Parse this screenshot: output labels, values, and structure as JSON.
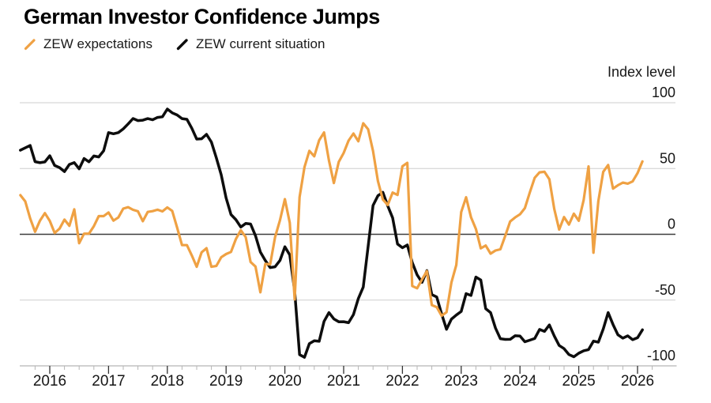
{
  "title": "German Investor Confidence Jumps",
  "legend": {
    "items": [
      {
        "label": "ZEW expectations",
        "color": "#EFA143"
      },
      {
        "label": "ZEW current situation",
        "color": "#0d0d0d"
      }
    ]
  },
  "axis": {
    "unit_label": "Index level",
    "y_ticks": [
      100,
      50,
      0,
      -50,
      -100
    ],
    "x_ticks": [
      2016,
      2017,
      2018,
      2019,
      2020,
      2021,
      2022,
      2023,
      2024,
      2025,
      2026
    ]
  },
  "chart_data": {
    "type": "line",
    "title": "German Investor Confidence Jumps",
    "xlabel": "",
    "ylabel": "Index level",
    "ylim": [
      -100,
      100
    ],
    "x_start": "2015-07",
    "x_end": "2026-02",
    "frequency": "monthly",
    "grid": "horizontal",
    "legend_position": "top-left",
    "series": [
      {
        "name": "ZEW expectations",
        "color": "#EFA143",
        "values": [
          29.7,
          25.0,
          12.1,
          1.9,
          10.4,
          16.1,
          10.2,
          1.0,
          4.3,
          11.2,
          6.4,
          19.0,
          -6.8,
          0.5,
          0.5,
          6.2,
          13.8,
          13.8,
          16.6,
          10.4,
          12.8,
          19.5,
          20.6,
          18.6,
          17.5,
          10.0,
          17.0,
          17.6,
          18.7,
          17.4,
          20.4,
          17.8,
          5.1,
          -8.2,
          -8.2,
          -16.1,
          -24.7,
          -13.7,
          -10.6,
          -24.7,
          -24.1,
          -17.5,
          -15.0,
          -13.4,
          -3.6,
          3.1,
          -2.1,
          -21.1,
          -24.5,
          -44.1,
          -22.5,
          -22.8,
          -2.1,
          10.7,
          26.7,
          8.7,
          -49.5,
          28.2,
          51.0,
          63.4,
          59.3,
          71.5,
          77.4,
          56.1,
          39.0,
          55.0,
          61.8,
          71.2,
          76.6,
          70.7,
          84.4,
          79.8,
          63.3,
          40.4,
          26.5,
          22.3,
          31.7,
          29.9,
          51.7,
          54.3,
          -39.3,
          -41.0,
          -34.3,
          -28.0,
          -53.8,
          -55.3,
          -61.9,
          -59.2,
          -36.7,
          -23.3,
          16.9,
          28.1,
          13.0,
          4.1,
          -10.7,
          -8.5,
          -14.7,
          -12.3,
          -11.4,
          -1.1,
          9.8,
          12.8,
          15.2,
          19.9,
          31.7,
          42.9,
          47.1,
          47.5,
          41.8,
          19.2,
          3.6,
          13.1,
          7.4,
          15.7,
          10.3,
          26.0,
          51.6,
          -14.0,
          25.2,
          47.5,
          52.7,
          34.7,
          37.3,
          39.3,
          38.5,
          40.2,
          46.5,
          55.4
        ]
      },
      {
        "name": "ZEW current situation",
        "color": "#0d0d0d",
        "values": [
          63.9,
          65.7,
          67.5,
          55.2,
          54.4,
          55.0,
          59.7,
          52.3,
          50.7,
          47.7,
          53.1,
          54.5,
          49.8,
          57.6,
          55.1,
          59.5,
          58.8,
          63.5,
          77.3,
          76.4,
          77.3,
          80.1,
          83.9,
          88.0,
          86.4,
          86.7,
          87.9,
          87.0,
          88.8,
          89.3,
          95.2,
          92.3,
          90.7,
          87.9,
          87.4,
          80.6,
          72.4,
          72.6,
          76.0,
          70.1,
          58.2,
          45.3,
          27.6,
          15.0,
          11.1,
          5.5,
          8.2,
          7.8,
          -1.1,
          -13.5,
          -19.9,
          -25.3,
          -24.7,
          -19.9,
          -9.5,
          -15.7,
          -43.1,
          -91.5,
          -93.5,
          -83.1,
          -80.9,
          -81.3,
          -66.2,
          -59.5,
          -64.3,
          -66.5,
          -66.4,
          -67.2,
          -61.0,
          -48.8,
          -40.1,
          -9.1,
          21.9,
          29.3,
          31.9,
          21.6,
          12.5,
          -7.4,
          -10.2,
          -8.1,
          -21.4,
          -30.8,
          -36.5,
          -27.6,
          -45.8,
          -47.6,
          -60.5,
          -72.2,
          -64.5,
          -61.4,
          -58.6,
          -45.1,
          -46.5,
          -32.5,
          -34.8,
          -56.5,
          -59.5,
          -71.3,
          -79.4,
          -79.9,
          -79.8,
          -77.1,
          -77.3,
          -81.7,
          -80.5,
          -79.2,
          -72.3,
          -73.8,
          -68.9,
          -77.3,
          -84.5,
          -86.9,
          -91.4,
          -93.1,
          -90.4,
          -88.5,
          -87.6,
          -81.2,
          -82.0,
          -72.0,
          -59.5,
          -68.6,
          -76.4,
          -78.9,
          -77.2,
          -80.1,
          -78.6,
          -72.6
        ]
      }
    ]
  }
}
